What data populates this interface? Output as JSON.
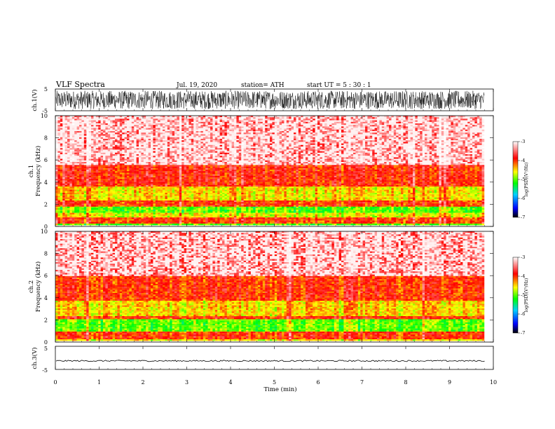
{
  "header": {
    "title": "VLF  Spectra",
    "date": "Jul.  19,  2020",
    "station": "station= ATH",
    "start": "start  UT  =    5  : 30 : 1"
  },
  "chart_data": {
    "type": "heatmap",
    "x": {
      "label": "Time  (min)",
      "range": [
        0,
        10
      ],
      "ticks": [
        "0",
        "1",
        "2",
        "3",
        "4",
        "5",
        "6",
        "7",
        "8",
        "9",
        "10"
      ],
      "data_end": 9.8
    },
    "panels": [
      {
        "id": "ch1_waveform",
        "type": "line",
        "ylabel": "ch.1(V)",
        "yrange": [
          -5,
          5
        ],
        "yticks": [
          "5",
          "-5"
        ],
        "amplitude": 4.2,
        "color": "#000000"
      },
      {
        "id": "ch1_spectrogram",
        "type": "heatmap",
        "ylabel_top": "ch.1",
        "ylabel": "Frequency  (kHz)",
        "yrange": [
          0,
          10
        ],
        "yticks": [
          "0",
          "2",
          "4",
          "6",
          "8",
          "10"
        ],
        "colorbar": {
          "label": "log(PSD)(V²/Hz)",
          "range": [
            -7,
            -3
          ],
          "ticks": [
            "-3",
            "-4",
            "-5",
            "-6",
            "-7"
          ]
        },
        "bands_khz": [
          {
            "from": 0,
            "to": 0.3,
            "level": -5.0
          },
          {
            "from": 0.3,
            "to": 0.8,
            "level": -4.0
          },
          {
            "from": 0.8,
            "to": 1.2,
            "level": -4.6
          },
          {
            "from": 1.2,
            "to": 1.8,
            "level": -5.0
          },
          {
            "from": 1.8,
            "to": 2.3,
            "level": -4.0
          },
          {
            "from": 2.3,
            "to": 3.6,
            "level": -4.5
          },
          {
            "from": 3.6,
            "to": 5.5,
            "level": -3.9
          },
          {
            "from": 5.5,
            "to": 10,
            "level": -3.4
          }
        ]
      },
      {
        "id": "ch2_spectrogram",
        "type": "heatmap",
        "ylabel_top": "ch.2",
        "ylabel": "Frequency  (kHz)",
        "yrange": [
          0,
          10
        ],
        "yticks": [
          "0",
          "2",
          "4",
          "6",
          "8",
          "10"
        ],
        "colorbar": {
          "label": "log(PSD)(V²/Hz)",
          "range": [
            -7,
            -3
          ],
          "ticks": [
            "-3",
            "-4",
            "-5",
            "-6",
            "-7"
          ]
        },
        "bands_khz": [
          {
            "from": 0,
            "to": 0.3,
            "level": -4.6
          },
          {
            "from": 0.3,
            "to": 0.9,
            "level": -4.0
          },
          {
            "from": 0.9,
            "to": 2.0,
            "level": -5.0
          },
          {
            "from": 2.0,
            "to": 2.4,
            "level": -4.0
          },
          {
            "from": 2.4,
            "to": 3.8,
            "level": -4.5
          },
          {
            "from": 3.8,
            "to": 6.0,
            "level": -4.0
          },
          {
            "from": 6.0,
            "to": 10,
            "level": -3.5
          }
        ]
      },
      {
        "id": "ch3_waveform",
        "type": "line",
        "ylabel": "ch.3(V)",
        "yrange": [
          -5,
          5
        ],
        "yticks": [
          "5",
          "-5"
        ],
        "amplitude": 0.3,
        "offset": -1.3,
        "color": "#000000"
      }
    ]
  }
}
